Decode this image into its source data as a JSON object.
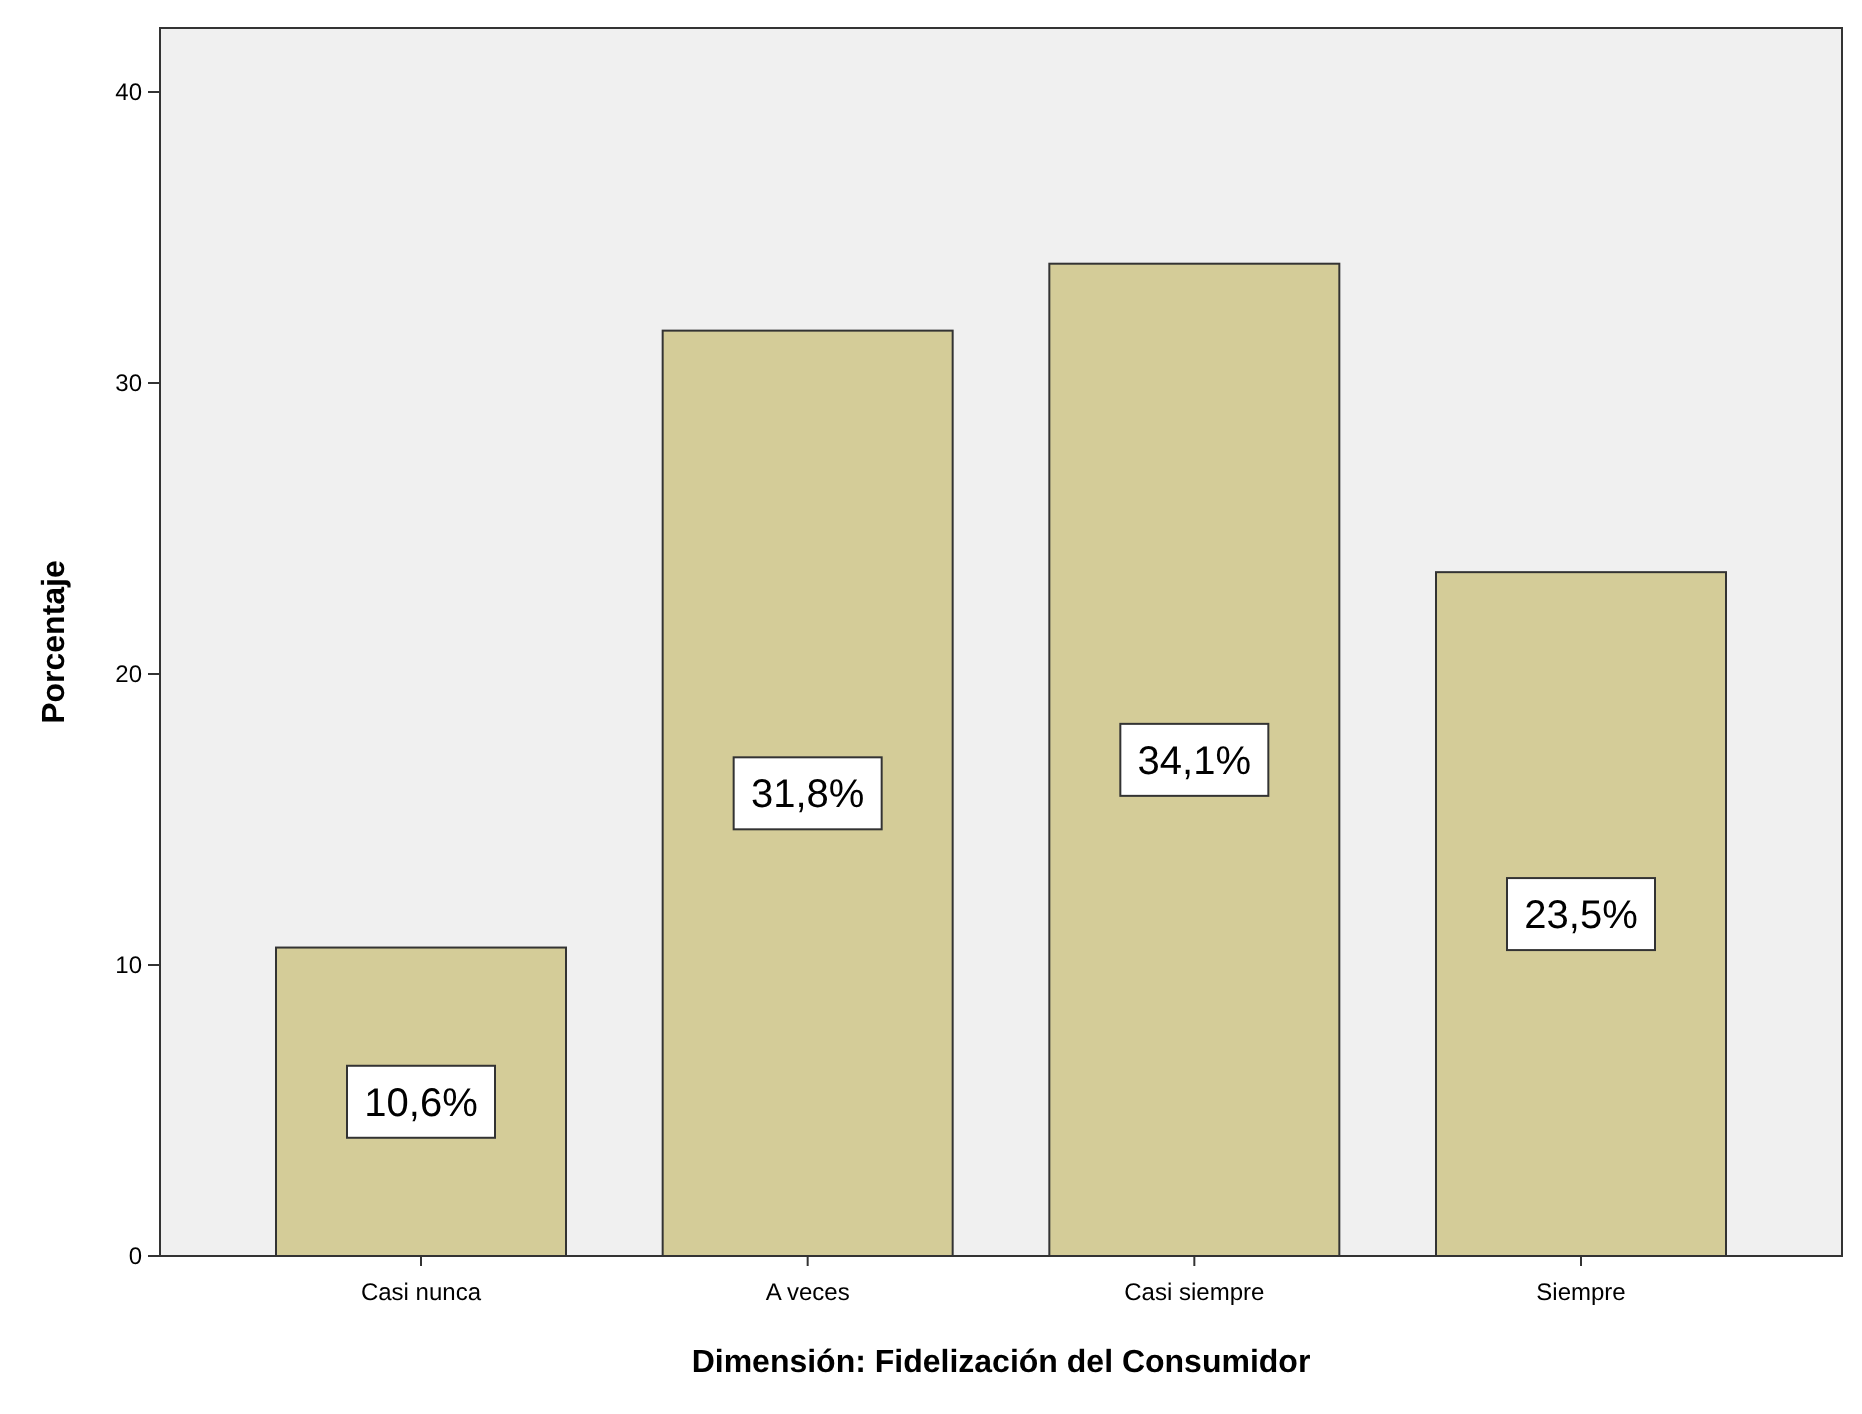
{
  "chart_data": {
    "type": "bar",
    "xlabel": "Dimensión: Fidelización del Consumidor",
    "ylabel": "Porcentaje",
    "categories": [
      "Casi nunca",
      "A veces",
      "Casi siempre",
      "Siempre"
    ],
    "values": [
      10.6,
      31.8,
      34.1,
      23.5
    ],
    "value_labels": [
      "10,6%",
      "31,8%",
      "34,1%",
      "23,5%"
    ],
    "color": "#d4cc98",
    "ylim": [
      0,
      42.2
    ],
    "yticks": [
      0,
      10,
      20,
      30,
      40
    ]
  }
}
